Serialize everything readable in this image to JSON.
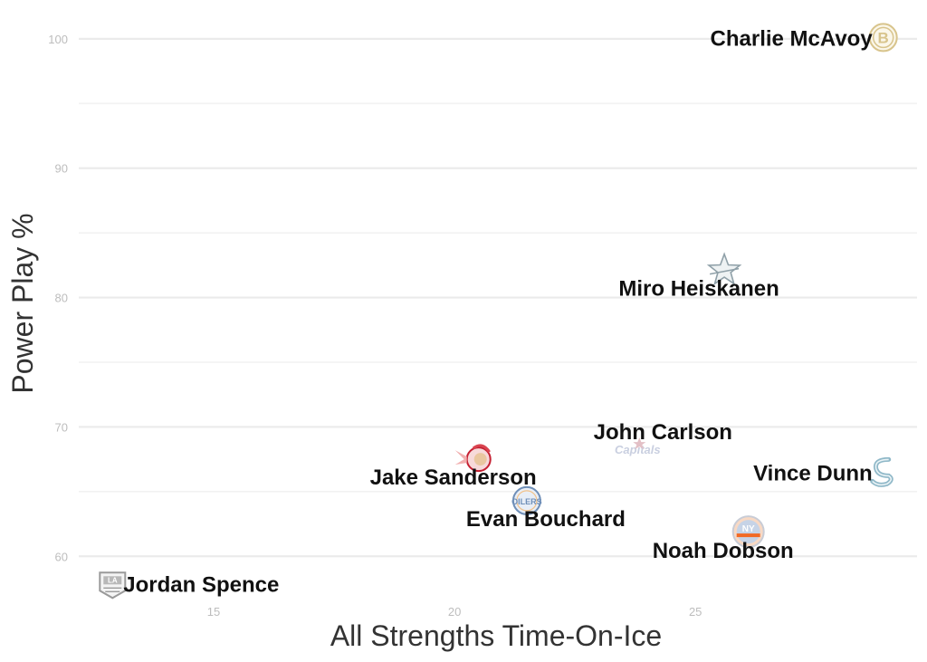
{
  "chart_data": {
    "type": "scatter",
    "title": "",
    "xlabel": "All Strengths Time-On-Ice",
    "ylabel": "Power Play %",
    "xlim": [
      12.2,
      29.6
    ],
    "ylim": [
      56.8,
      102.3
    ],
    "x_ticks": [
      15,
      20,
      25
    ],
    "y_ticks": [
      60,
      70,
      80,
      90,
      100
    ],
    "grid": true,
    "legend": "none",
    "points": [
      {
        "name": "Charlie McAvoy",
        "team_logo": "boston-bruins-logo-icon",
        "label_side": "left",
        "x": 28.9,
        "y": 100.1
      },
      {
        "name": "Miro Heiskanen",
        "team_logo": "dallas-stars-logo-icon",
        "label_side": "below",
        "x": 25.6,
        "y": 82.1
      },
      {
        "name": "John Carlson",
        "team_logo": "washington-capitals-logo-icon",
        "label_side": "above",
        "x": 23.8,
        "y": 68.2
      },
      {
        "name": "Jake Sanderson",
        "team_logo": "ottawa-senators-logo-icon",
        "label_side": "left",
        "x": 20.5,
        "y": 67.5
      },
      {
        "name": "Vince Dunn",
        "team_logo": "seattle-kraken-logo-icon",
        "label_side": "left",
        "x": 28.9,
        "y": 66.5
      },
      {
        "name": "Evan Bouchard",
        "team_logo": "edmonton-oilers-logo-icon",
        "label_side": "below",
        "x": 21.5,
        "y": 64.3
      },
      {
        "name": "Noah Dobson",
        "team_logo": "new-york-islanders-logo-icon",
        "label_side": "below",
        "x": 26.1,
        "y": 61.9
      },
      {
        "name": "Jordan Spence",
        "team_logo": "los-angeles-kings-logo-icon",
        "label_side": "right",
        "x": 12.9,
        "y": 57.9
      }
    ],
    "colors": {
      "bruins": "#d8c48c",
      "stars": "#8fa0a8",
      "capitals": "#c8102e",
      "senators": "#c52032",
      "kraken": "#8fb8c8",
      "oilers": "#6f8fb8",
      "islanders": "#f26924",
      "kings": "#9a9a9a"
    }
  }
}
